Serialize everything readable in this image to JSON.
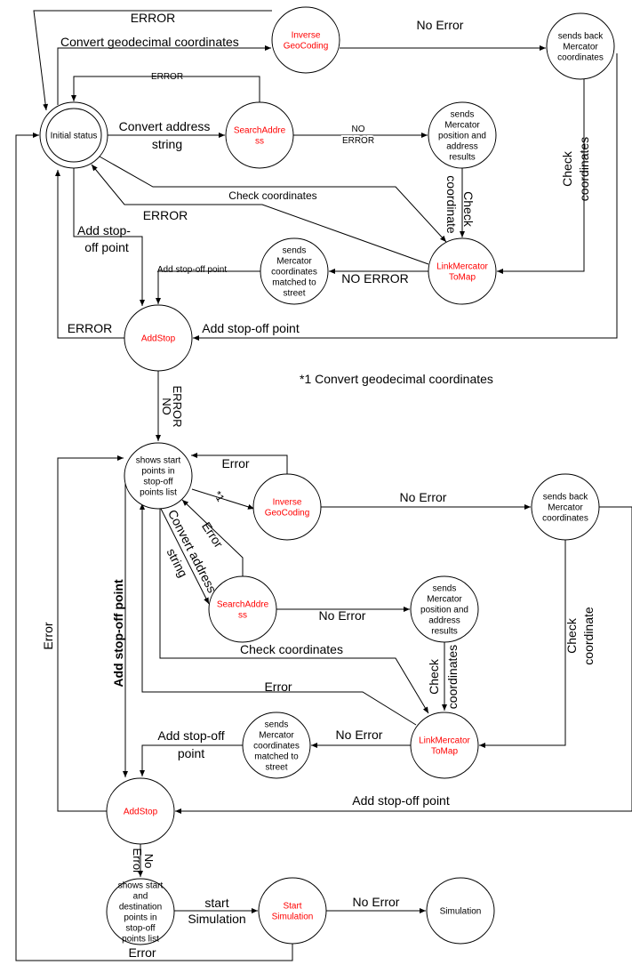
{
  "colors": {
    "state_name": "#ff0000",
    "text": "#000000",
    "line": "#000000"
  },
  "nodes": [
    {
      "id": "initial-status",
      "lines": [
        "Initial status"
      ],
      "color": "#000000",
      "double": true
    },
    {
      "id": "inverse-geocoding-1",
      "lines": [
        "Inverse",
        "GeoCoding"
      ],
      "color": "#ff0000"
    },
    {
      "id": "sends-back-mercator-1",
      "lines": [
        "sends back",
        "Mercator",
        "coordinates"
      ],
      "color": "#000000"
    },
    {
      "id": "search-address-1",
      "lines": [
        "SearchAddre",
        "ss"
      ],
      "color": "#ff0000"
    },
    {
      "id": "sends-mercator-position-1",
      "lines": [
        "sends",
        "Mercator",
        "position and",
        "address",
        "results"
      ],
      "color": "#000000"
    },
    {
      "id": "link-mercator-to-map-1",
      "lines": [
        "LinkMercator",
        "ToMap"
      ],
      "color": "#ff0000"
    },
    {
      "id": "sends-matched-street-1",
      "lines": [
        "sends",
        "Mercator",
        "coordinates",
        "matched to",
        "street"
      ],
      "color": "#000000"
    },
    {
      "id": "add-stop-1",
      "lines": [
        "AddStop"
      ],
      "color": "#ff0000"
    },
    {
      "id": "shows-start-points",
      "lines": [
        "shows start",
        "points in",
        "stop-off",
        "points list"
      ],
      "color": "#000000"
    },
    {
      "id": "inverse-geocoding-2",
      "lines": [
        "Inverse",
        "GeoCoding"
      ],
      "color": "#ff0000"
    },
    {
      "id": "sends-back-mercator-2",
      "lines": [
        "sends back",
        "Mercator",
        "coordinates"
      ],
      "color": "#000000"
    },
    {
      "id": "search-address-2",
      "lines": [
        "SearchAddre",
        "ss"
      ],
      "color": "#ff0000"
    },
    {
      "id": "sends-mercator-position-2",
      "lines": [
        "sends",
        "Mercator",
        "position and",
        "address",
        "results"
      ],
      "color": "#000000"
    },
    {
      "id": "link-mercator-to-map-2",
      "lines": [
        "LinkMercator",
        "ToMap"
      ],
      "color": "#ff0000"
    },
    {
      "id": "sends-matched-street-2",
      "lines": [
        "sends",
        "Mercator",
        "coordinates",
        "matched to",
        "street"
      ],
      "color": "#000000"
    },
    {
      "id": "add-stop-2",
      "lines": [
        "AddStop"
      ],
      "color": "#ff0000"
    },
    {
      "id": "shows-start-destination",
      "lines": [
        "shows start",
        "and",
        "destination",
        "points in",
        "stop-off",
        "points list"
      ],
      "color": "#000000"
    },
    {
      "id": "start-simulation",
      "lines": [
        "Start",
        "Simulation"
      ],
      "color": "#ff0000"
    },
    {
      "id": "simulation",
      "lines": [
        "Simulation"
      ],
      "color": "#000000"
    }
  ],
  "edge_labels": [
    "ERROR",
    "Convert geodecimal coordinates",
    "ERROR",
    "Convert address",
    "string",
    "NO",
    "ERROR",
    "No Error",
    "Check",
    "coordinates",
    "Add stop-off point",
    "Check",
    "coordinate",
    "Check coordinates",
    "ERROR",
    "NO ERROR",
    "Add stop-off point",
    "Add stop-",
    "off point",
    "ERROR",
    "NO",
    "ERROR",
    "Error",
    "*1",
    "Error",
    "Convert address",
    "string",
    "No Error",
    "No Error",
    "Check",
    "coordinates",
    "Add stop-off point",
    "Check",
    "coordinate",
    "Check coordinates",
    "Error",
    "No Error",
    "Add stop-off",
    "point",
    "Add stop-off point",
    "Error",
    "No",
    "Error",
    "start",
    "Simulation",
    "No Error",
    "Error"
  ],
  "footnote": "*1 Convert geodecimal coordinates"
}
